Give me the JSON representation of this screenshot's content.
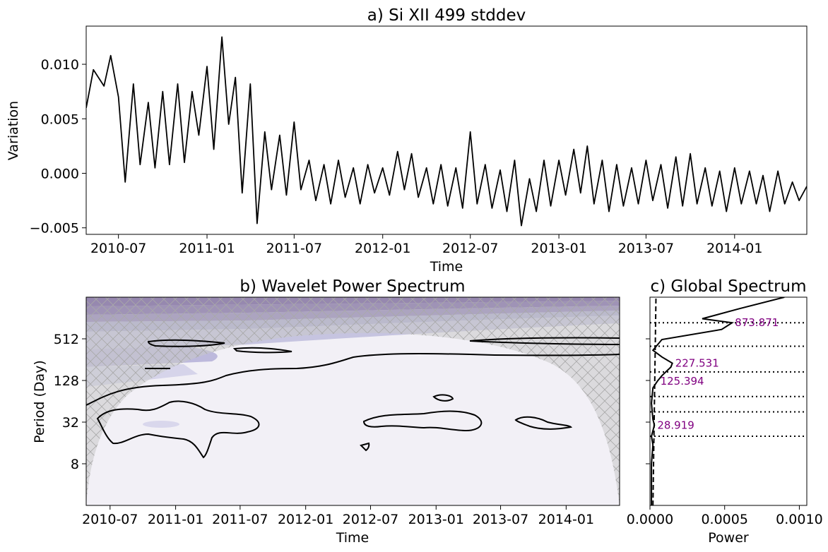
{
  "chart_data": [
    {
      "type": "line",
      "title": "a) Si XII 499 stddev",
      "xlabel": "Time",
      "ylabel": "Variation",
      "ylim": [
        -0.0056,
        0.0135
      ],
      "yticks": [
        -0.005,
        0.0,
        0.005,
        0.01
      ],
      "ytick_labels": [
        "−0.005",
        "0.000",
        "0.005",
        "0.010"
      ],
      "xticks": [
        "2010-07",
        "2011-01",
        "2011-07",
        "2012-01",
        "2012-07",
        "2013-01",
        "2013-07",
        "2014-01"
      ],
      "xlim": [
        "2010-04-25",
        "2014-05-31"
      ],
      "line_color": "#000000",
      "series": [
        {
          "x": [
            "2010-04-25",
            "2010-05-10",
            "2010-06-01",
            "2010-06-15",
            "2010-07-01",
            "2010-07-15",
            "2010-08-01",
            "2010-08-15",
            "2010-09-01",
            "2010-09-15",
            "2010-10-01",
            "2010-10-15",
            "2010-11-01",
            "2010-11-15",
            "2010-12-01",
            "2010-12-15",
            "2011-01-01",
            "2011-01-15",
            "2011-02-01",
            "2011-02-15",
            "2011-03-01",
            "2011-03-15",
            "2011-04-01",
            "2011-04-15",
            "2011-05-01",
            "2011-05-15",
            "2011-06-01",
            "2011-06-15",
            "2011-07-01",
            "2011-07-15",
            "2011-08-01",
            "2011-08-15",
            "2011-09-01",
            "2011-09-15",
            "2011-10-01",
            "2011-10-15",
            "2011-11-01",
            "2011-11-15",
            "2011-12-01",
            "2011-12-15",
            "2012-01-01",
            "2012-01-15",
            "2012-02-01",
            "2012-02-15",
            "2012-03-01",
            "2012-03-15",
            "2012-04-01",
            "2012-04-15",
            "2012-05-01",
            "2012-05-15",
            "2012-06-01",
            "2012-06-15",
            "2012-07-01",
            "2012-07-15",
            "2012-08-01",
            "2012-08-15",
            "2012-09-01",
            "2012-09-15",
            "2012-10-01",
            "2012-10-15",
            "2012-11-01",
            "2012-11-15",
            "2012-12-01",
            "2012-12-15",
            "2013-01-01",
            "2013-01-15",
            "2013-02-01",
            "2013-02-15",
            "2013-03-01",
            "2013-03-15",
            "2013-04-01",
            "2013-04-15",
            "2013-05-01",
            "2013-05-15",
            "2013-06-01",
            "2013-06-15",
            "2013-07-01",
            "2013-07-15",
            "2013-08-01",
            "2013-08-15",
            "2013-09-01",
            "2013-09-15",
            "2013-10-01",
            "2013-10-15",
            "2013-11-01",
            "2013-11-15",
            "2013-12-01",
            "2013-12-15",
            "2014-01-01",
            "2014-01-15",
            "2014-02-01",
            "2014-02-15",
            "2014-03-01",
            "2014-03-15",
            "2014-04-01",
            "2014-04-15",
            "2014-05-01",
            "2014-05-15",
            "2014-05-31"
          ],
          "y": [
            0.006,
            0.0095,
            0.008,
            0.0108,
            0.007,
            -0.0008,
            0.0082,
            0.0008,
            0.0065,
            0.0005,
            0.0075,
            0.0008,
            0.0082,
            0.001,
            0.0075,
            0.0035,
            0.0098,
            0.0022,
            0.0125,
            0.0045,
            0.0088,
            -0.0018,
            0.0082,
            -0.0046,
            0.0038,
            -0.0015,
            0.0035,
            -0.002,
            0.0047,
            -0.0015,
            0.0012,
            -0.0025,
            0.0008,
            -0.0028,
            0.0012,
            -0.0022,
            0.0005,
            -0.0028,
            0.0008,
            -0.0018,
            0.0005,
            -0.002,
            0.002,
            -0.0015,
            0.0018,
            -0.0022,
            0.0005,
            -0.0028,
            0.0008,
            -0.003,
            0.0005,
            -0.0032,
            0.0038,
            -0.0028,
            0.0008,
            -0.0032,
            0.0003,
            -0.0035,
            0.0012,
            -0.0048,
            -0.0005,
            -0.0035,
            0.0012,
            -0.003,
            0.0012,
            -0.002,
            0.0022,
            -0.0018,
            0.0025,
            -0.0028,
            0.0012,
            -0.0035,
            0.0008,
            -0.003,
            0.0005,
            -0.0028,
            0.0012,
            -0.0025,
            0.0008,
            -0.0032,
            0.0015,
            -0.003,
            0.0018,
            -0.0028,
            0.0005,
            -0.003,
            0.0002,
            -0.0035,
            0.0005,
            -0.0028,
            0.0002,
            -0.0028,
            -0.0002,
            -0.0035,
            0.0002,
            -0.0028,
            -0.0008,
            -0.0025,
            -0.0012
          ]
        }
      ]
    },
    {
      "type": "heatmap",
      "title": "b) Wavelet Power Spectrum",
      "xlabel": "Time",
      "ylabel": "Period (Day)",
      "yscale": "log2",
      "yticks": [
        8,
        32,
        128,
        512
      ],
      "ytick_labels": [
        "8",
        "32",
        "128",
        "512"
      ],
      "ylim": [
        2,
        2048
      ],
      "xticks": [
        "2010-07",
        "2011-01",
        "2011-07",
        "2012-01",
        "2012-07",
        "2013-01",
        "2013-07",
        "2014-01"
      ],
      "xlim": [
        "2010-04-25",
        "2014-05-31"
      ],
      "colormap": "Purples",
      "colors": {
        "low": "#f2f0f6",
        "mid": "#aaa8d0",
        "high": "#6a4c9c",
        "cone_of_influence": "#c8c8c8",
        "contour": "#000000"
      }
    },
    {
      "type": "line",
      "title": "c) Global Spectrum",
      "xlabel": "Power",
      "xlim": [
        0,
        0.00105
      ],
      "xticks": [
        0.0,
        0.0005,
        0.001
      ],
      "xtick_labels": [
        "0.0000",
        "0.0005",
        "0.0010"
      ],
      "yscale": "log2",
      "ylim": [
        2,
        2048
      ],
      "series": [
        {
          "style": "solid",
          "period": [
            2,
            8,
            15,
            20,
            28.919,
            35,
            60,
            100,
            125.394,
            150,
            200,
            227.531,
            280,
            350,
            500,
            700,
            873.871,
            1000,
            1400,
            2048
          ],
          "power": [
            1e-05,
            1e-05,
            2e-05,
            1e-05,
            3e-05,
            2e-05,
            1e-05,
            2e-05,
            5e-05,
            8e-05,
            0.00014,
            0.00015,
            8e-05,
            2e-05,
            8e-05,
            0.00048,
            0.00055,
            0.00035,
            0.0006,
            0.0009
          ]
        },
        {
          "style": "dashed",
          "period": [
            2,
            2048
          ],
          "power": [
            2e-05,
            4e-05
          ]
        }
      ],
      "reference_periods": [
        873.871,
        400,
        170,
        75,
        45,
        20
      ],
      "annotations": [
        "873.871",
        "227.531",
        "125.394",
        "28.919"
      ],
      "annotation_periods": [
        873.871,
        227.531,
        125.394,
        28.919
      ],
      "annotation_color": "#800080"
    }
  ]
}
